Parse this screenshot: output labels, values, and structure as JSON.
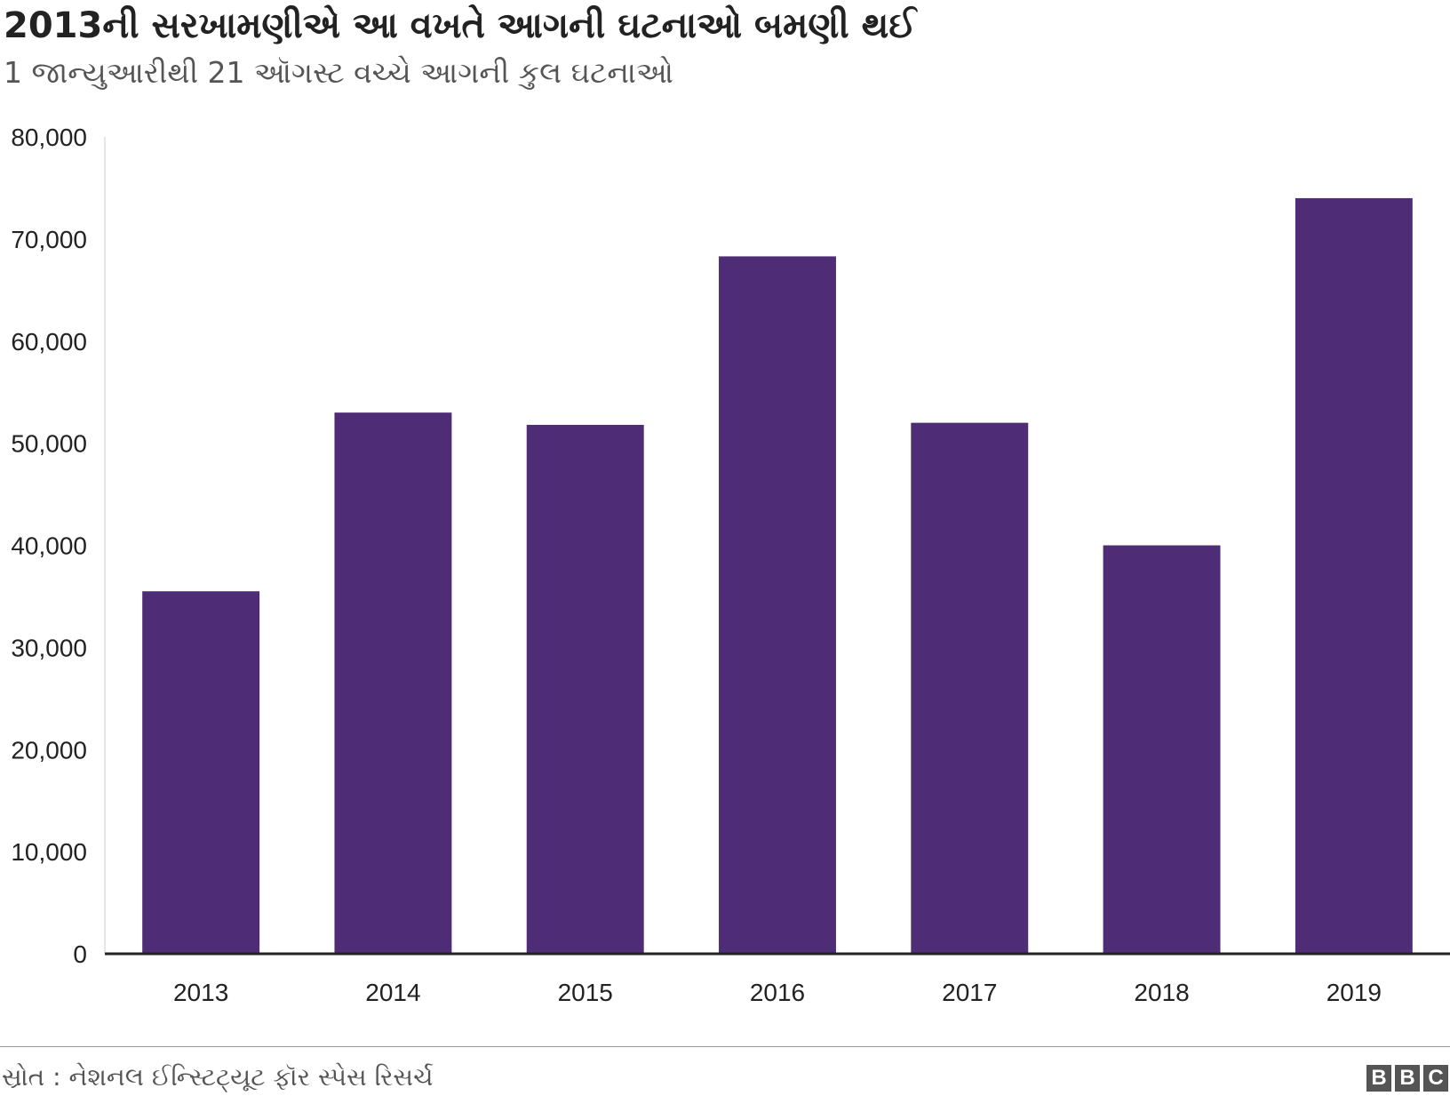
{
  "chart_data": {
    "type": "bar",
    "title": "2013ની સરખામણીએ આ વખતે આગની ઘટનાઓ બમણી થઈ",
    "subtitle": "1 જાન્યુઆરીથી 21 ઑગસ્ટ વચ્ચે આગની કુલ ઘટનાઓ",
    "categories": [
      "2013",
      "2014",
      "2015",
      "2016",
      "2017",
      "2018",
      "2019"
    ],
    "values": [
      35500,
      53000,
      51800,
      68300,
      52000,
      40000,
      74000
    ],
    "ylim": [
      0,
      80000
    ],
    "yticks": [
      0,
      10000,
      20000,
      30000,
      40000,
      50000,
      60000,
      70000,
      80000
    ],
    "ytick_labels": [
      "0",
      "10,000",
      "20,000",
      "30,000",
      "40,000",
      "50,000",
      "60,000",
      "70,000",
      "80,000"
    ],
    "xlabel": "",
    "ylabel": "",
    "grid": false,
    "bar_color": "#4e2d76"
  },
  "footer": {
    "source": "સ્રોત : નેશનલ ઈન્સ્ટિટ્યૂટ ફૉર સ્પેસ રિસર્ચ",
    "logo_letters": [
      "B",
      "B",
      "C"
    ]
  }
}
